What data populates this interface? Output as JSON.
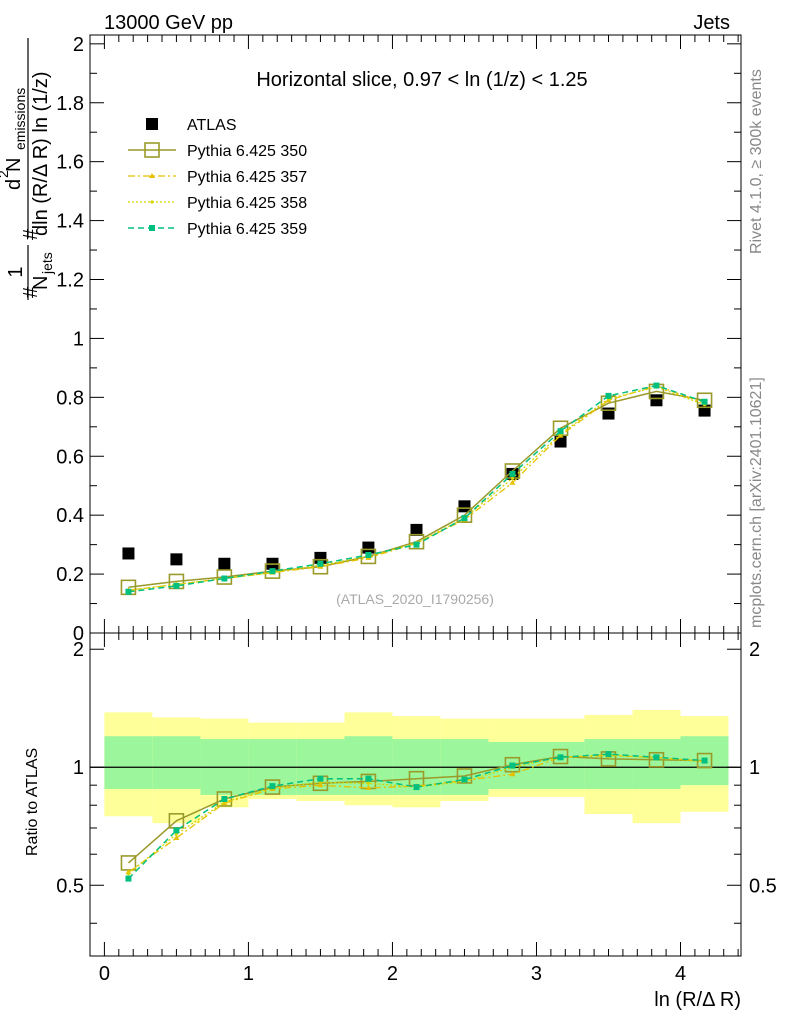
{
  "header": {
    "energy_label": "13000 GeV pp",
    "process_label": "Jets",
    "side_label_top": "Rivet 4.1.0, ≥ 300k events",
    "side_label_bottom": "mcplots.cern.ch [arXiv:2401.10621]"
  },
  "colors": {
    "atlas": "#000000",
    "p350": "#9a9a2a",
    "p357": "#e6c000",
    "p358": "#d4d400",
    "p359": "#00c080",
    "band_inner": "#9cf79c",
    "band_outer": "#ffff99"
  },
  "chart_data": [
    {
      "type": "scatter",
      "title": "Horizontal slice, 0.97 < ln (1/z) < 1.25",
      "ylabel": "#frac{1}{N_jets} #frac{d² N_emissions}{dln (R/Δ R) ln (1/z)}",
      "ylabel_parts": {
        "one": "1",
        "njets": "N",
        "njets_sub": "jets",
        "d2": "d",
        "d2_sup": "2",
        "nem": " N",
        "nem_sub": "emissions",
        "den": "dln (R/Δ R) ln (1/z)",
        "hash": "#"
      },
      "watermark": "(ATLAS_2020_I1790256)",
      "xlim": [
        -0.1,
        4.42
      ],
      "ylim": [
        0,
        2.03
      ],
      "yticks": [
        "0",
        "0.2",
        "0.4",
        "0.6",
        "0.8",
        "1",
        "1.2",
        "1.4",
        "1.6",
        "1.8",
        "2"
      ],
      "x": [
        0.167,
        0.5,
        0.833,
        1.167,
        1.5,
        1.833,
        2.167,
        2.5,
        2.833,
        3.167,
        3.5,
        3.833,
        4.167
      ],
      "series": [
        {
          "name": "ATLAS",
          "key": "atlas",
          "marker": "square-filled",
          "values": [
            0.27,
            0.25,
            0.235,
            0.235,
            0.255,
            0.29,
            0.35,
            0.43,
            0.54,
            0.65,
            0.745,
            0.79,
            0.755
          ]
        },
        {
          "name": "Pythia 6.425 350",
          "key": "p350",
          "marker": "square-open",
          "values": [
            0.155,
            0.175,
            0.19,
            0.21,
            0.225,
            0.26,
            0.31,
            0.4,
            0.55,
            0.695,
            0.78,
            0.82,
            0.79
          ]
        },
        {
          "name": "Pythia 6.425 357",
          "key": "p357",
          "marker": "triangle",
          "values": [
            0.145,
            0.165,
            0.185,
            0.205,
            0.225,
            0.255,
            0.305,
            0.385,
            0.51,
            0.67,
            0.79,
            0.84,
            0.78
          ]
        },
        {
          "name": "Pythia 6.425 358",
          "key": "p358",
          "marker": "dot",
          "values": [
            0.145,
            0.165,
            0.185,
            0.205,
            0.23,
            0.26,
            0.305,
            0.39,
            0.525,
            0.675,
            0.795,
            0.835,
            0.775
          ]
        },
        {
          "name": "Pythia 6.425 359",
          "key": "p359",
          "marker": "square-small",
          "values": [
            0.14,
            0.16,
            0.185,
            0.21,
            0.235,
            0.265,
            0.3,
            0.39,
            0.54,
            0.685,
            0.805,
            0.84,
            0.785
          ]
        }
      ]
    },
    {
      "type": "scatter",
      "title": "",
      "xlabel": "ln (R/Δ R)",
      "ylabel": "Ratio to ATLAS",
      "xlim": [
        -0.1,
        4.42
      ],
      "ylim": [
        0.33,
        2.2
      ],
      "xticks": [
        "0",
        "1",
        "2",
        "3",
        "4"
      ],
      "yticks": [
        "0.5",
        "1",
        "2"
      ],
      "band_edges": [
        0,
        0.333,
        0.667,
        1.0,
        1.333,
        1.667,
        2.0,
        2.333,
        2.667,
        3.0,
        3.333,
        3.667,
        4.0,
        4.333
      ],
      "band_inner_lo": [
        0.88,
        0.88,
        0.85,
        0.85,
        0.85,
        0.85,
        0.85,
        0.85,
        0.88,
        0.88,
        0.88,
        0.88,
        0.9
      ],
      "band_inner_hi": [
        1.2,
        1.2,
        1.18,
        1.18,
        1.18,
        1.2,
        1.18,
        1.18,
        1.16,
        1.16,
        1.18,
        1.18,
        1.2
      ],
      "band_outer_lo": [
        0.75,
        0.72,
        0.79,
        0.83,
        0.82,
        0.8,
        0.79,
        0.82,
        0.84,
        0.84,
        0.76,
        0.72,
        0.77
      ],
      "band_outer_hi": [
        1.38,
        1.34,
        1.33,
        1.3,
        1.3,
        1.38,
        1.35,
        1.33,
        1.33,
        1.33,
        1.36,
        1.4,
        1.35
      ],
      "series": [
        {
          "name": "Pythia 6.425 350",
          "key": "p350",
          "marker": "square-open",
          "values": [
            0.57,
            0.73,
            0.83,
            0.89,
            0.91,
            0.92,
            0.935,
            0.95,
            1.015,
            1.065,
            1.05,
            1.045,
            1.04
          ]
        },
        {
          "name": "Pythia 6.425 357",
          "key": "p357",
          "marker": "triangle",
          "values": [
            0.54,
            0.66,
            0.81,
            0.88,
            0.9,
            0.885,
            0.895,
            0.925,
            0.96,
            1.06,
            1.07,
            1.06,
            1.035
          ]
        },
        {
          "name": "Pythia 6.425 358",
          "key": "p358",
          "marker": "dot",
          "values": [
            0.535,
            0.675,
            0.815,
            0.885,
            0.915,
            0.91,
            0.89,
            0.92,
            1.0,
            1.06,
            1.075,
            1.055,
            1.035
          ]
        },
        {
          "name": "Pythia 6.425 359",
          "key": "p359",
          "marker": "square-small",
          "values": [
            0.52,
            0.69,
            0.83,
            0.895,
            0.935,
            0.935,
            0.89,
            0.93,
            1.01,
            1.06,
            1.08,
            1.06,
            1.04
          ]
        }
      ]
    }
  ]
}
